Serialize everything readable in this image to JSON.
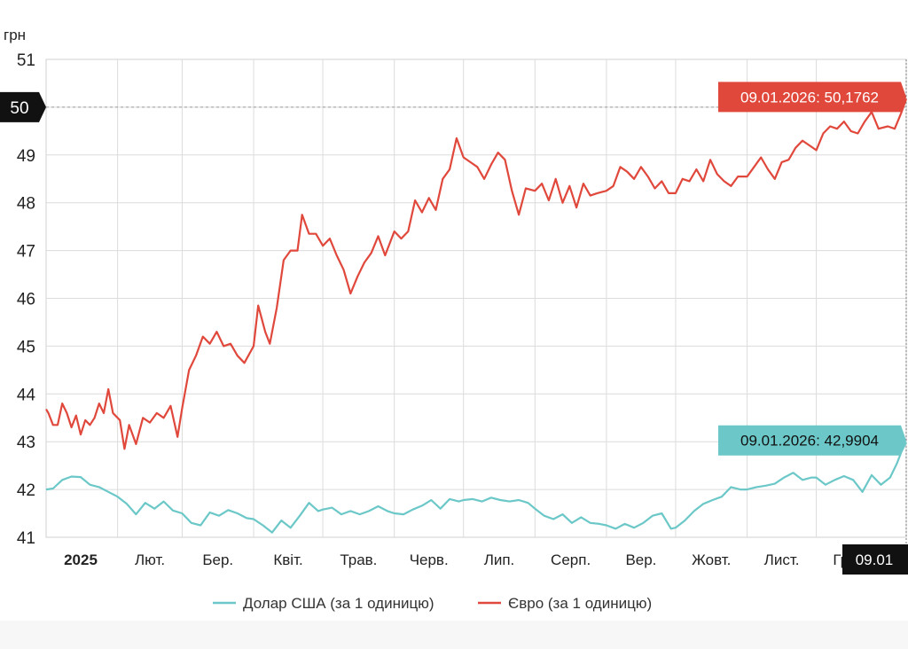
{
  "chart_data": {
    "type": "line",
    "ylabel": "грн",
    "ylim": [
      41,
      51
    ],
    "yticks": [
      41,
      42,
      43,
      44,
      45,
      46,
      47,
      48,
      49,
      50,
      51
    ],
    "xlim": [
      "2025-01-01",
      "2026-01-09"
    ],
    "x_ticks": [
      {
        "date": "2025-01-01",
        "label": "2025",
        "bold": true
      },
      {
        "date": "2025-02-01",
        "label": "Лют."
      },
      {
        "date": "2025-03-01",
        "label": "Бер."
      },
      {
        "date": "2025-04-01",
        "label": "Квіт."
      },
      {
        "date": "2025-05-01",
        "label": "Трав."
      },
      {
        "date": "2025-06-01",
        "label": "Черв."
      },
      {
        "date": "2025-07-01",
        "label": "Лип."
      },
      {
        "date": "2025-08-01",
        "label": "Серп."
      },
      {
        "date": "2025-09-01",
        "label": "Вер."
      },
      {
        "date": "2025-10-01",
        "label": "Жовт."
      },
      {
        "date": "2025-11-01",
        "label": "Лист."
      },
      {
        "date": "2025-12-01",
        "label": "Гр."
      }
    ],
    "grid": true,
    "legend_position": "bottom",
    "crosshair": {
      "y_value": 50,
      "y_label": "50",
      "x_date": "2026-01-09",
      "x_label": "09.01"
    },
    "series": [
      {
        "name": "Долар США (за 1 одиницю)",
        "color": "#6cc8c8",
        "points": [
          [
            "2025-01-01",
            42.0
          ],
          [
            "2025-01-04",
            42.02
          ],
          [
            "2025-01-08",
            42.2
          ],
          [
            "2025-01-12",
            42.27
          ],
          [
            "2025-01-16",
            42.26
          ],
          [
            "2025-01-20",
            42.1
          ],
          [
            "2025-01-24",
            42.05
          ],
          [
            "2025-01-28",
            41.95
          ],
          [
            "2025-02-01",
            41.85
          ],
          [
            "2025-02-05",
            41.7
          ],
          [
            "2025-02-09",
            41.48
          ],
          [
            "2025-02-13",
            41.72
          ],
          [
            "2025-02-17",
            41.6
          ],
          [
            "2025-02-21",
            41.75
          ],
          [
            "2025-02-25",
            41.56
          ],
          [
            "2025-03-01",
            41.5
          ],
          [
            "2025-03-05",
            41.3
          ],
          [
            "2025-03-09",
            41.25
          ],
          [
            "2025-03-13",
            41.52
          ],
          [
            "2025-03-17",
            41.45
          ],
          [
            "2025-03-21",
            41.57
          ],
          [
            "2025-03-25",
            41.5
          ],
          [
            "2025-03-29",
            41.4
          ],
          [
            "2025-04-01",
            41.38
          ],
          [
            "2025-04-05",
            41.25
          ],
          [
            "2025-04-09",
            41.1
          ],
          [
            "2025-04-13",
            41.35
          ],
          [
            "2025-04-17",
            41.2
          ],
          [
            "2025-04-21",
            41.45
          ],
          [
            "2025-04-25",
            41.72
          ],
          [
            "2025-04-29",
            41.55
          ],
          [
            "2025-05-01",
            41.58
          ],
          [
            "2025-05-05",
            41.62
          ],
          [
            "2025-05-09",
            41.48
          ],
          [
            "2025-05-13",
            41.55
          ],
          [
            "2025-05-17",
            41.48
          ],
          [
            "2025-05-21",
            41.55
          ],
          [
            "2025-05-25",
            41.65
          ],
          [
            "2025-05-29",
            41.55
          ],
          [
            "2025-06-01",
            41.5
          ],
          [
            "2025-06-05",
            41.48
          ],
          [
            "2025-06-09",
            41.58
          ],
          [
            "2025-06-13",
            41.66
          ],
          [
            "2025-06-17",
            41.78
          ],
          [
            "2025-06-21",
            41.6
          ],
          [
            "2025-06-25",
            41.8
          ],
          [
            "2025-06-29",
            41.75
          ],
          [
            "2025-07-01",
            41.78
          ],
          [
            "2025-07-05",
            41.8
          ],
          [
            "2025-07-09",
            41.75
          ],
          [
            "2025-07-13",
            41.83
          ],
          [
            "2025-07-17",
            41.78
          ],
          [
            "2025-07-21",
            41.75
          ],
          [
            "2025-07-25",
            41.78
          ],
          [
            "2025-07-29",
            41.72
          ],
          [
            "2025-08-01",
            41.6
          ],
          [
            "2025-08-05",
            41.45
          ],
          [
            "2025-08-09",
            41.38
          ],
          [
            "2025-08-13",
            41.48
          ],
          [
            "2025-08-17",
            41.3
          ],
          [
            "2025-08-21",
            41.42
          ],
          [
            "2025-08-25",
            41.3
          ],
          [
            "2025-08-29",
            41.28
          ],
          [
            "2025-09-01",
            41.25
          ],
          [
            "2025-09-05",
            41.18
          ],
          [
            "2025-09-09",
            41.28
          ],
          [
            "2025-09-13",
            41.2
          ],
          [
            "2025-09-17",
            41.3
          ],
          [
            "2025-09-21",
            41.45
          ],
          [
            "2025-09-25",
            41.5
          ],
          [
            "2025-09-29",
            41.18
          ],
          [
            "2025-10-01",
            41.2
          ],
          [
            "2025-10-05",
            41.35
          ],
          [
            "2025-10-09",
            41.55
          ],
          [
            "2025-10-13",
            41.7
          ],
          [
            "2025-10-17",
            41.78
          ],
          [
            "2025-10-21",
            41.85
          ],
          [
            "2025-10-25",
            42.05
          ],
          [
            "2025-10-29",
            42.0
          ],
          [
            "2025-11-01",
            42.0
          ],
          [
            "2025-11-05",
            42.05
          ],
          [
            "2025-11-09",
            42.08
          ],
          [
            "2025-11-13",
            42.12
          ],
          [
            "2025-11-17",
            42.25
          ],
          [
            "2025-11-21",
            42.35
          ],
          [
            "2025-11-25",
            42.2
          ],
          [
            "2025-11-29",
            42.25
          ],
          [
            "2025-12-01",
            42.25
          ],
          [
            "2025-12-05",
            42.1
          ],
          [
            "2025-12-09",
            42.2
          ],
          [
            "2025-12-13",
            42.28
          ],
          [
            "2025-12-17",
            42.2
          ],
          [
            "2025-12-21",
            41.95
          ],
          [
            "2025-12-25",
            42.3
          ],
          [
            "2025-12-29",
            42.1
          ],
          [
            "2026-01-02",
            42.25
          ],
          [
            "2026-01-05",
            42.55
          ],
          [
            "2026-01-07",
            42.8
          ],
          [
            "2026-01-09",
            42.9904
          ]
        ],
        "last_label": "09.01.2026: 42,9904"
      },
      {
        "name": "Євро (за 1 одиницю)",
        "color": "#e0483c",
        "points": [
          [
            "2025-01-01",
            43.68
          ],
          [
            "2025-01-02",
            43.6
          ],
          [
            "2025-01-04",
            43.35
          ],
          [
            "2025-01-06",
            43.35
          ],
          [
            "2025-01-08",
            43.8
          ],
          [
            "2025-01-10",
            43.6
          ],
          [
            "2025-01-12",
            43.3
          ],
          [
            "2025-01-14",
            43.55
          ],
          [
            "2025-01-16",
            43.15
          ],
          [
            "2025-01-18",
            43.45
          ],
          [
            "2025-01-20",
            43.35
          ],
          [
            "2025-01-22",
            43.5
          ],
          [
            "2025-01-24",
            43.8
          ],
          [
            "2025-01-26",
            43.6
          ],
          [
            "2025-01-28",
            44.1
          ],
          [
            "2025-01-30",
            43.6
          ],
          [
            "2025-02-02",
            43.45
          ],
          [
            "2025-02-04",
            42.85
          ],
          [
            "2025-02-06",
            43.35
          ],
          [
            "2025-02-09",
            42.95
          ],
          [
            "2025-02-12",
            43.5
          ],
          [
            "2025-02-15",
            43.4
          ],
          [
            "2025-02-18",
            43.6
          ],
          [
            "2025-02-21",
            43.5
          ],
          [
            "2025-02-24",
            43.75
          ],
          [
            "2025-02-27",
            43.1
          ],
          [
            "2025-03-01",
            43.7
          ],
          [
            "2025-03-04",
            44.5
          ],
          [
            "2025-03-07",
            44.8
          ],
          [
            "2025-03-10",
            45.2
          ],
          [
            "2025-03-13",
            45.05
          ],
          [
            "2025-03-16",
            45.3
          ],
          [
            "2025-03-19",
            45.0
          ],
          [
            "2025-03-22",
            45.05
          ],
          [
            "2025-03-25",
            44.8
          ],
          [
            "2025-03-28",
            44.65
          ],
          [
            "2025-04-01",
            45.0
          ],
          [
            "2025-04-03",
            45.85
          ],
          [
            "2025-04-06",
            45.3
          ],
          [
            "2025-04-08",
            45.05
          ],
          [
            "2025-04-11",
            45.8
          ],
          [
            "2025-04-14",
            46.8
          ],
          [
            "2025-04-17",
            47.0
          ],
          [
            "2025-04-20",
            47.0
          ],
          [
            "2025-04-22",
            47.75
          ],
          [
            "2025-04-25",
            47.35
          ],
          [
            "2025-04-28",
            47.35
          ],
          [
            "2025-05-01",
            47.1
          ],
          [
            "2025-05-04",
            47.25
          ],
          [
            "2025-05-07",
            46.9
          ],
          [
            "2025-05-10",
            46.6
          ],
          [
            "2025-05-13",
            46.1
          ],
          [
            "2025-05-16",
            46.45
          ],
          [
            "2025-05-19",
            46.75
          ],
          [
            "2025-05-22",
            46.95
          ],
          [
            "2025-05-25",
            47.3
          ],
          [
            "2025-05-28",
            46.9
          ],
          [
            "2025-06-01",
            47.4
          ],
          [
            "2025-06-04",
            47.25
          ],
          [
            "2025-06-07",
            47.4
          ],
          [
            "2025-06-10",
            48.05
          ],
          [
            "2025-06-13",
            47.8
          ],
          [
            "2025-06-16",
            48.1
          ],
          [
            "2025-06-19",
            47.85
          ],
          [
            "2025-06-22",
            48.5
          ],
          [
            "2025-06-25",
            48.7
          ],
          [
            "2025-06-28",
            49.35
          ],
          [
            "2025-07-01",
            48.95
          ],
          [
            "2025-07-04",
            48.85
          ],
          [
            "2025-07-07",
            48.75
          ],
          [
            "2025-07-10",
            48.5
          ],
          [
            "2025-07-13",
            48.8
          ],
          [
            "2025-07-16",
            49.05
          ],
          [
            "2025-07-19",
            48.9
          ],
          [
            "2025-07-22",
            48.25
          ],
          [
            "2025-07-25",
            47.75
          ],
          [
            "2025-07-28",
            48.3
          ],
          [
            "2025-08-01",
            48.25
          ],
          [
            "2025-08-04",
            48.4
          ],
          [
            "2025-08-07",
            48.05
          ],
          [
            "2025-08-10",
            48.5
          ],
          [
            "2025-08-13",
            48.0
          ],
          [
            "2025-08-16",
            48.35
          ],
          [
            "2025-08-19",
            47.9
          ],
          [
            "2025-08-22",
            48.4
          ],
          [
            "2025-08-25",
            48.15
          ],
          [
            "2025-08-28",
            48.2
          ],
          [
            "2025-09-01",
            48.25
          ],
          [
            "2025-09-04",
            48.35
          ],
          [
            "2025-09-07",
            48.75
          ],
          [
            "2025-09-10",
            48.65
          ],
          [
            "2025-09-13",
            48.5
          ],
          [
            "2025-09-16",
            48.75
          ],
          [
            "2025-09-19",
            48.55
          ],
          [
            "2025-09-22",
            48.3
          ],
          [
            "2025-09-25",
            48.45
          ],
          [
            "2025-09-28",
            48.2
          ],
          [
            "2025-10-01",
            48.2
          ],
          [
            "2025-10-04",
            48.5
          ],
          [
            "2025-10-07",
            48.45
          ],
          [
            "2025-10-10",
            48.7
          ],
          [
            "2025-10-13",
            48.45
          ],
          [
            "2025-10-16",
            48.9
          ],
          [
            "2025-10-19",
            48.6
          ],
          [
            "2025-10-22",
            48.45
          ],
          [
            "2025-10-25",
            48.35
          ],
          [
            "2025-10-28",
            48.55
          ],
          [
            "2025-11-01",
            48.55
          ],
          [
            "2025-11-04",
            48.75
          ],
          [
            "2025-11-07",
            48.95
          ],
          [
            "2025-11-10",
            48.7
          ],
          [
            "2025-11-13",
            48.5
          ],
          [
            "2025-11-16",
            48.85
          ],
          [
            "2025-11-19",
            48.9
          ],
          [
            "2025-11-22",
            49.15
          ],
          [
            "2025-11-25",
            49.3
          ],
          [
            "2025-11-28",
            49.2
          ],
          [
            "2025-12-01",
            49.1
          ],
          [
            "2025-12-04",
            49.45
          ],
          [
            "2025-12-07",
            49.6
          ],
          [
            "2025-12-10",
            49.55
          ],
          [
            "2025-12-13",
            49.7
          ],
          [
            "2025-12-16",
            49.5
          ],
          [
            "2025-12-19",
            49.45
          ],
          [
            "2025-12-22",
            49.7
          ],
          [
            "2025-12-25",
            49.9
          ],
          [
            "2025-12-28",
            49.55
          ],
          [
            "2026-01-01",
            49.6
          ],
          [
            "2026-01-04",
            49.55
          ],
          [
            "2026-01-07",
            49.9
          ],
          [
            "2026-01-09",
            50.1762
          ]
        ],
        "last_label": "09.01.2026: 50,1762"
      }
    ]
  }
}
